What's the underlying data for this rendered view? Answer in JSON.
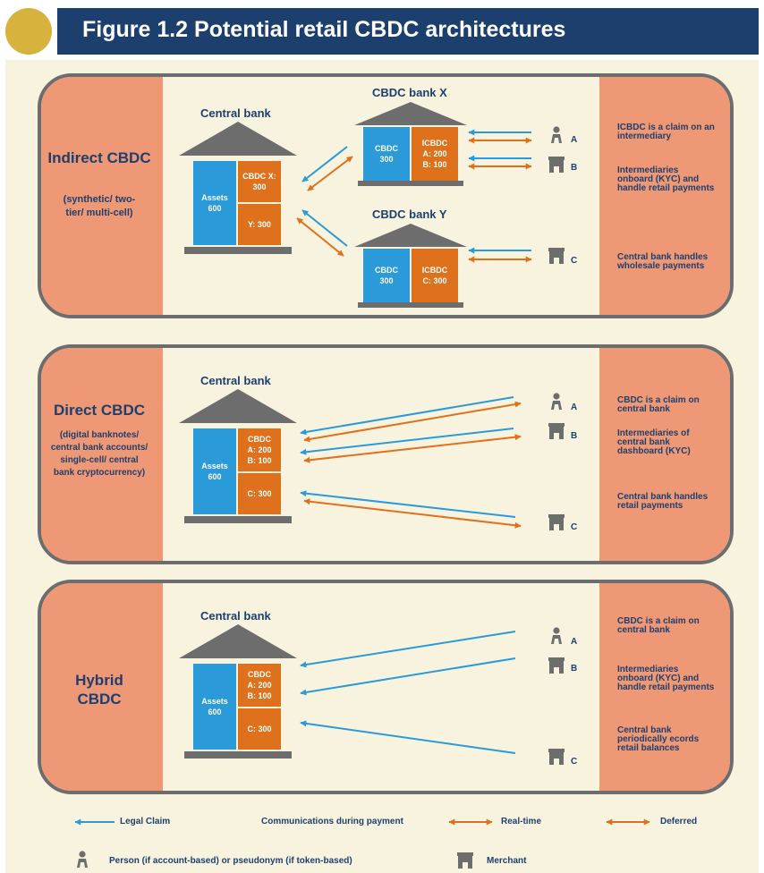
{
  "header": {
    "title": "Figure 1.2  Potential retail CBDC architectures"
  },
  "colors": {
    "navy": "#1d3f6e",
    "blue": "#2a9ad8",
    "orange": "#e0711c",
    "salmon": "#ef9876",
    "cream": "#f7f3df",
    "grey": "#6d6d6d"
  },
  "indirect": {
    "title": "Indirect CBDC",
    "subtitle": "(synthetic/ two-tier/ multi-cell)",
    "central_bank": {
      "label": "Central bank",
      "assets": "Assets",
      "assets_value": "600",
      "cbdc_x": "CBDC X: 300",
      "y": "Y: 300"
    },
    "bank_x": {
      "label": "CBDC bank X",
      "cbdc": "CBDC",
      "cbdc_value": "300",
      "icbdc": "ICBDC",
      "a": "A: 200",
      "b": "B: 100"
    },
    "bank_y": {
      "label": "CBDC bank Y",
      "cbdc": "CBDC",
      "cbdc_value": "300",
      "icbdc": "ICBDC",
      "c": "C: 300"
    },
    "notes": [
      "ICBDC is a claim on an intermediary",
      "Intermediaries onboard (KYC) and handle retail payments",
      "Central bank handles wholesale payments"
    ]
  },
  "direct": {
    "title": "Direct CBDC",
    "subtitle": "(digital banknotes/ central bank accounts/ single-cell/ central bank cryptocurrency)",
    "central_bank": {
      "label": "Central bank",
      "assets": "Assets",
      "assets_value": "600",
      "cbdc": "CBDC",
      "a": "A: 200",
      "b": "B: 100",
      "c": "C: 300"
    },
    "notes": [
      "CBDC is a claim on central bank",
      "Intermediaries of central bank dashboard (KYC)",
      "Central bank handles retail payments"
    ]
  },
  "hybrid": {
    "title": "Hybrid CBDC",
    "central_bank": {
      "label": "Central bank",
      "assets": "Assets",
      "assets_value": "600",
      "cbdc": "CBDC",
      "a": "A: 200",
      "b": "B: 100",
      "c": "C: 300"
    },
    "notes": [
      "CBDC is a claim on central bank",
      "Intermediaries onboard (KYC) and handle retail payments",
      "Central bank periodically ecords retail balances"
    ]
  },
  "tags": {
    "a": "A",
    "b": "B",
    "c": "C"
  },
  "legend": {
    "legal_claim": "Legal Claim",
    "communications": "Communications during payment",
    "real_time": "Real-time",
    "deferred": "Deferred",
    "person": "Person (if account-based) or pseudonym (if token-based)",
    "merchant": "Merchant"
  }
}
